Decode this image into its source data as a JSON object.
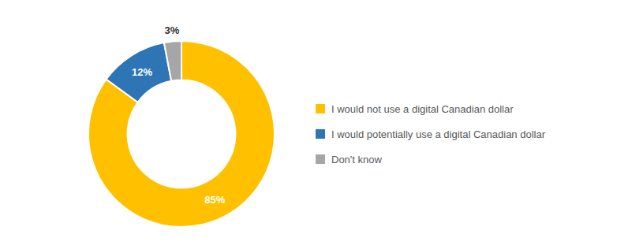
{
  "chart_data": {
    "type": "donut",
    "categories": [
      "I would not use a digital Canadian dollar",
      "I would potentially use a digital Canadian dollar",
      "Don't know"
    ],
    "values": [
      85,
      12,
      3
    ],
    "value_labels": [
      "85%",
      "12%",
      "3%"
    ],
    "colors": [
      "#FFC000",
      "#2E75B6",
      "#A6A6A6"
    ],
    "data_labels": true,
    "legend": "right"
  }
}
